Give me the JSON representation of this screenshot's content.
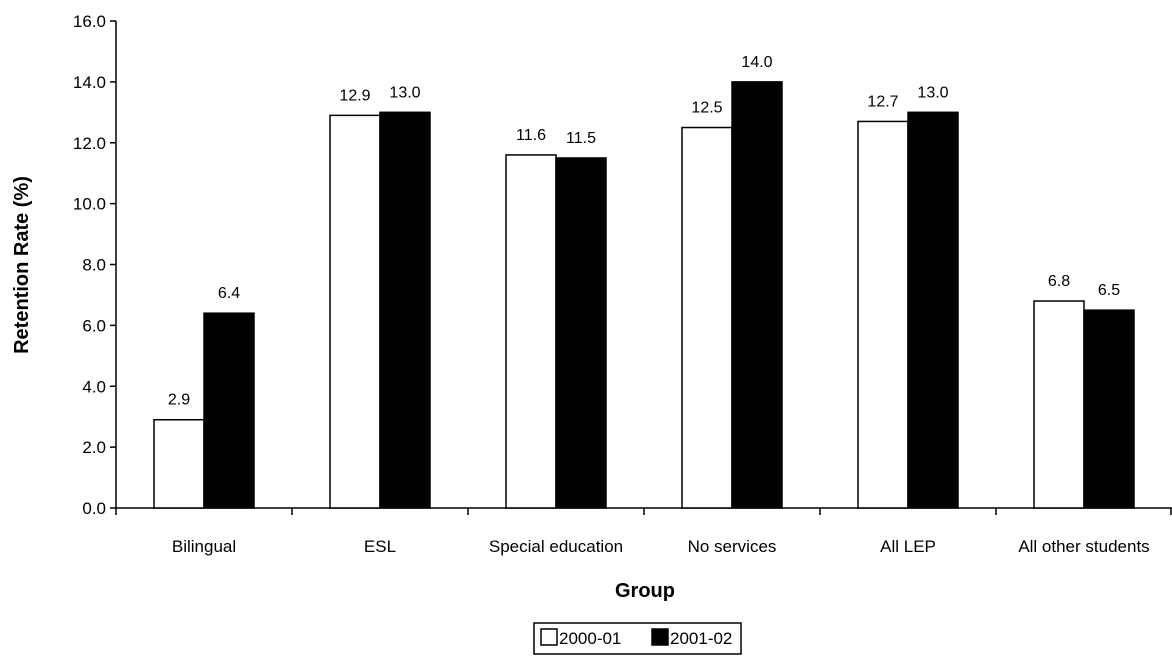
{
  "chart_data": {
    "type": "bar",
    "title": "",
    "xlabel": "Group",
    "ylabel": "Retention Rate (%)",
    "ylim": [
      0,
      16
    ],
    "yticks": [
      "0.0",
      "2.0",
      "4.0",
      "6.0",
      "8.0",
      "10.0",
      "12.0",
      "14.0",
      "16.0"
    ],
    "grid": false,
    "legend_position": "bottom",
    "categories": [
      "Bilingual",
      "ESL",
      "Special education",
      "No services",
      "All LEP",
      "All other students"
    ],
    "series": [
      {
        "name": "2000-01",
        "color": "#ffffff",
        "values": [
          2.9,
          12.9,
          11.6,
          12.5,
          12.7,
          6.8
        ],
        "labels": [
          "2.9",
          "12.9",
          "11.6",
          "12.5",
          "12.7",
          "6.8"
        ]
      },
      {
        "name": "2001-02",
        "color": "#000000",
        "values": [
          6.4,
          13.0,
          11.5,
          14.0,
          13.0,
          6.5
        ],
        "labels": [
          "6.4",
          "13.0",
          "11.5",
          "14.0",
          "13.0",
          "6.5"
        ]
      }
    ]
  }
}
